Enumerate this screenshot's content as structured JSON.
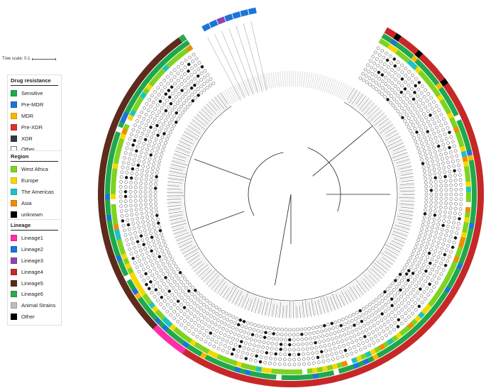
{
  "tree_scale": {
    "label": "Tree scale: 0.1"
  },
  "legends": {
    "drug_resistance": {
      "title": "Drug resistance",
      "items": [
        {
          "label": "Sensitive",
          "color": "#1fa84b"
        },
        {
          "label": "Pre-MDR",
          "color": "#1c74d9"
        },
        {
          "label": "MDR",
          "color": "#f5b800"
        },
        {
          "label": "Pre-XDR",
          "color": "#d93030"
        },
        {
          "label": "XDR",
          "color": "#333a40"
        },
        {
          "label": "Other",
          "color": "#ffffff"
        }
      ]
    },
    "region": {
      "title": "Region",
      "items": [
        {
          "label": "West Africa",
          "color": "#7ed321"
        },
        {
          "label": "Europe",
          "color": "#f5d800"
        },
        {
          "label": "The Americas",
          "color": "#1fc2c2"
        },
        {
          "label": "Asia",
          "color": "#f08c00"
        },
        {
          "label": "unknown",
          "color": "#000000"
        }
      ]
    },
    "lineage": {
      "title": "Lineage",
      "items": [
        {
          "label": "Lineage1",
          "color": "#ff2ea8"
        },
        {
          "label": "Lineage2",
          "color": "#1c74d9"
        },
        {
          "label": "Lineage3",
          "color": "#8e44ad"
        },
        {
          "label": "Lineage4",
          "color": "#c62828"
        },
        {
          "label": "Lineage5",
          "color": "#5d2a1c"
        },
        {
          "label": "Lineage6",
          "color": "#2ea84b"
        },
        {
          "label": "Animal Strains",
          "color": "#bdbdbd"
        },
        {
          "label": "Other",
          "color": "#000000"
        }
      ]
    }
  }
}
